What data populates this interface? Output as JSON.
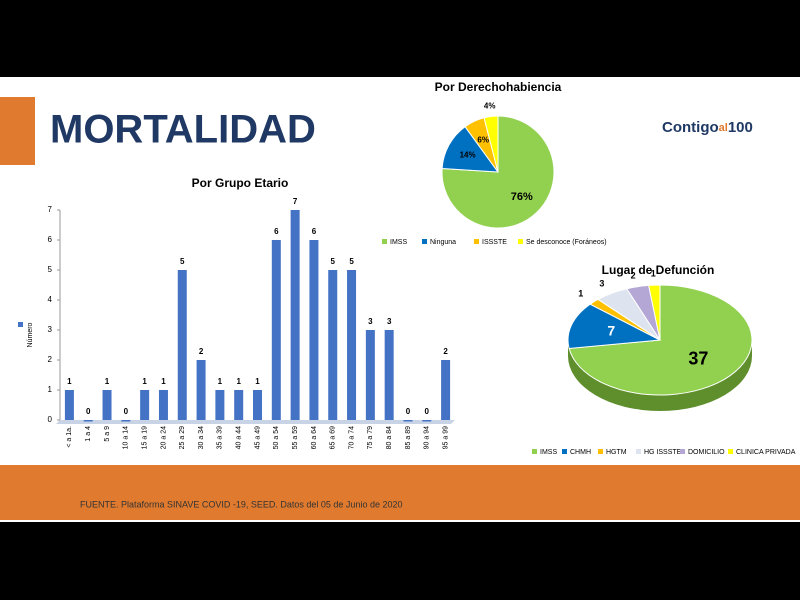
{
  "slide": {
    "title": "MORTALIDAD",
    "logo": [
      "Contigo",
      "al",
      "100"
    ],
    "source": "FUENTE. Plataforma SINAVE COVID -19, SEED. Datos del 05 de Junio de 2020"
  },
  "chart_data": [
    {
      "type": "bar",
      "title": "Por Grupo Etario",
      "y_label": "Número",
      "color": "#4472c4",
      "categories": [
        "< a 1a.",
        "1 a 4",
        "5 a 9",
        "10 a 14",
        "15 a 19",
        "20 a 24",
        "25 a 29",
        "30 a 34",
        "35 a 39",
        "40 a 44",
        "45 a 49",
        "50 a 54",
        "55 a 59",
        "60 a 64",
        "65 a 69",
        "70 a 74",
        "75 a 79",
        "80 a 84",
        "85 a 89",
        "90 a 94",
        "95 a 99"
      ],
      "values": [
        1,
        0,
        1,
        0,
        1,
        1,
        5,
        2,
        1,
        1,
        1,
        6,
        7,
        6,
        5,
        5,
        3,
        3,
        0,
        0,
        2
      ],
      "ylim": [
        0,
        7
      ],
      "yticks": [
        0,
        1,
        2,
        3,
        4,
        5,
        6,
        7
      ]
    },
    {
      "type": "pie",
      "title": "Por Derechohabiencia",
      "categories": [
        "IMSS",
        "Ninguna",
        "ISSSTE",
        "Se desconoce (Foráneos)"
      ],
      "values": [
        76,
        14,
        6,
        4
      ],
      "value_labels": [
        "76%",
        "14%",
        "6%",
        "4%"
      ],
      "colors": [
        "#92d050",
        "#0070c0",
        "#ffc000",
        "#ffff00"
      ]
    },
    {
      "type": "pie",
      "title": "Lugar de Defunción",
      "categories": [
        "IMSS",
        "CHMH",
        "HGTM",
        "HG ISSSTE",
        "DOMICILIO",
        "CLINICA PRIVADA"
      ],
      "values": [
        37,
        7,
        1,
        3,
        2,
        1
      ],
      "colors": [
        "#92d050",
        "#0070c0",
        "#ffc000",
        "#dde4ef",
        "#b4a7d6",
        "#ffff00"
      ]
    }
  ]
}
